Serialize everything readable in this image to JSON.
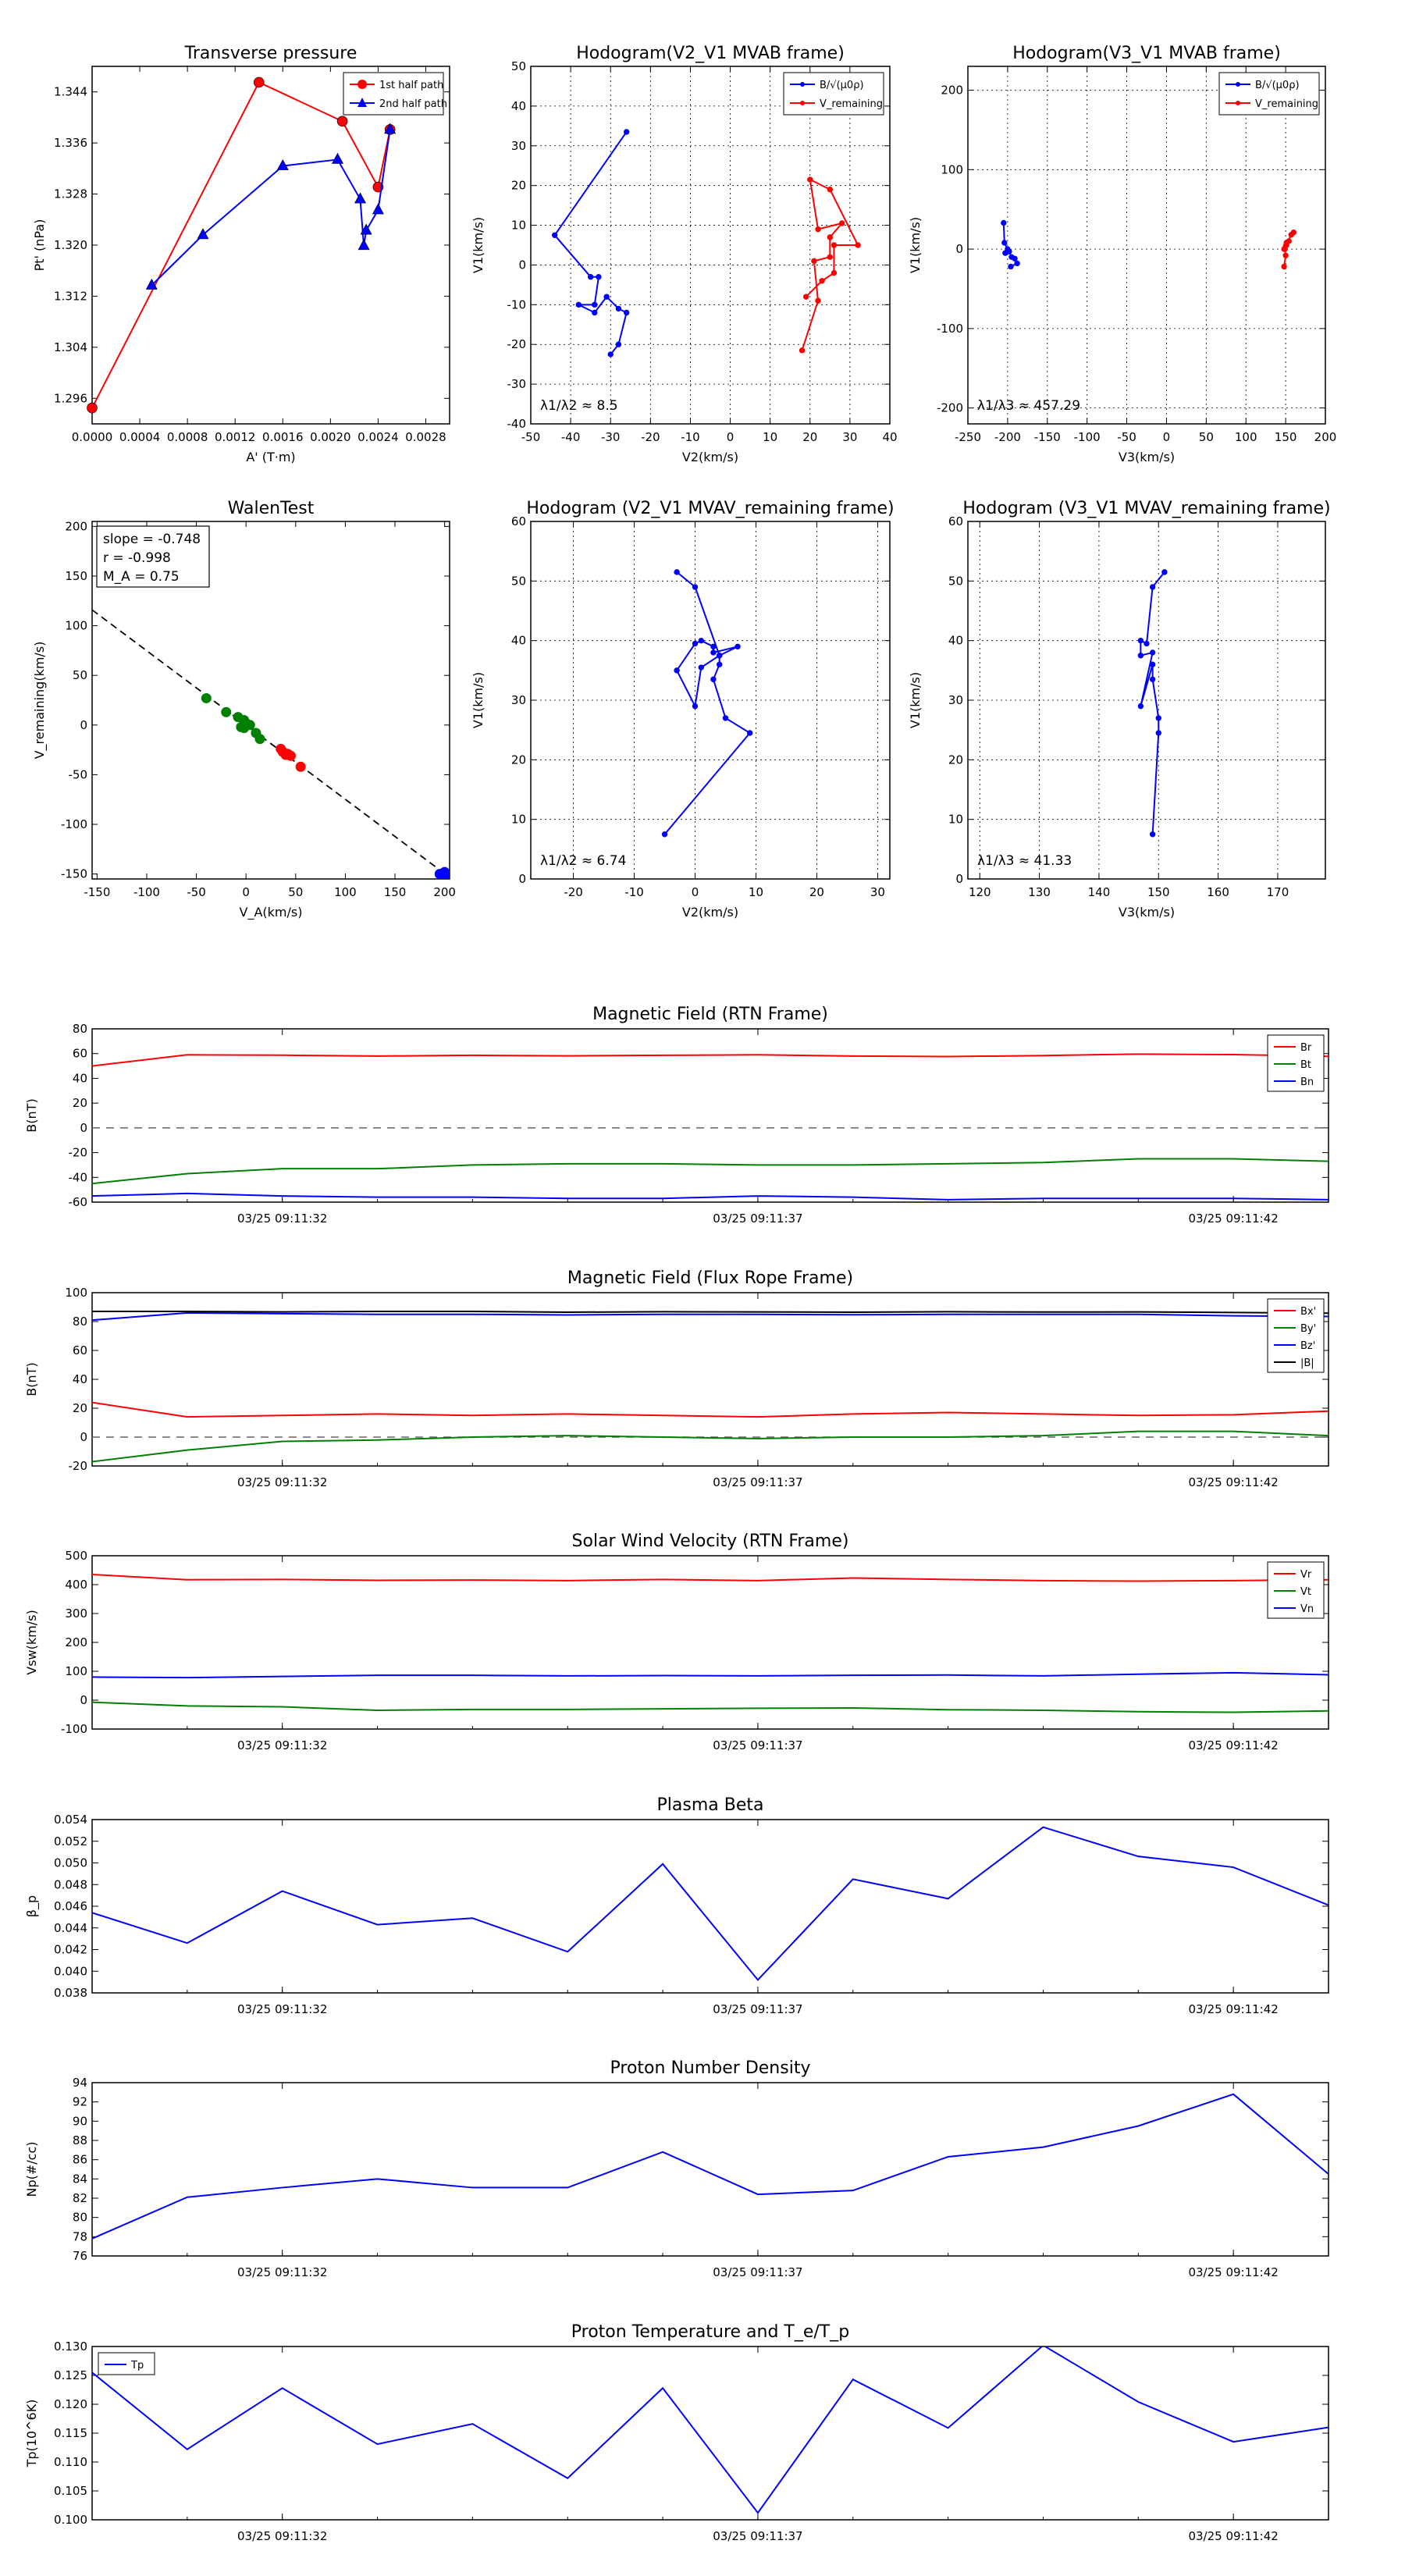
{
  "chart_data": [
    {
      "type": "scatter",
      "title": "Transverse pressure",
      "xlabel": "A' (T·m)",
      "ylabel": "Pt' (nPa)",
      "xlim": [
        0,
        0.003
      ],
      "ylim": [
        1.292,
        1.348
      ],
      "xticks": [
        0.0,
        0.0004,
        0.0008,
        0.0012,
        0.0016,
        0.002,
        0.0024,
        0.0028
      ],
      "xtick_labels": [
        "0.0000",
        "0.0004",
        "0.0008",
        "0.0012",
        "0.0016",
        "0.0020",
        "0.0024",
        "0.0028"
      ],
      "yticks": [
        1.296,
        1.304,
        1.312,
        1.32,
        1.328,
        1.336,
        1.344
      ],
      "ytick_labels": [
        "1.296",
        "1.304",
        "1.312",
        "1.320",
        "1.328",
        "1.336",
        "1.344"
      ],
      "legend": "top-right",
      "series": [
        {
          "name": "1st half path",
          "color": "#ff0000",
          "marker": "circle",
          "x": [
            0.0,
            0.0014,
            0.0021,
            0.0024,
            0.0025
          ],
          "y": [
            1.2945,
            1.3455,
            1.3394,
            1.3291,
            1.3381
          ]
        },
        {
          "name": "2nd half path",
          "color": "#0000ff",
          "marker": "triangle",
          "x": [
            0.0005,
            0.00093,
            0.0016,
            0.00206,
            0.00225,
            0.00228,
            0.0023,
            0.0024,
            0.0025
          ],
          "y": [
            1.3137,
            1.3216,
            1.3324,
            1.3334,
            1.3272,
            1.3199,
            1.3223,
            1.3255,
            1.3381
          ]
        }
      ]
    },
    {
      "type": "line",
      "title": "Hodogram(V2_V1 MVAB frame)",
      "xlabel": "V2(km/s)",
      "ylabel": "V1(km/s)",
      "xlim": [
        -50,
        40
      ],
      "ylim": [
        -40,
        50
      ],
      "xticks": [
        -50,
        -40,
        -30,
        -20,
        -10,
        0,
        10,
        20,
        30,
        40
      ],
      "yticks": [
        -40,
        -30,
        -20,
        -10,
        0,
        10,
        20,
        30,
        40,
        50
      ],
      "legend": "top-right",
      "annotation": "λ1/λ2 ≈ 8.5",
      "series": [
        {
          "name": "B/√(μ0ρ)",
          "color": "#0000ff",
          "x": [
            -26,
            -44,
            -35,
            -33,
            -34,
            -38,
            -34,
            -31,
            -28,
            -26,
            -28,
            -30
          ],
          "y": [
            33.5,
            7.5,
            -3,
            -3,
            -10,
            -10,
            -12,
            -8,
            -11,
            -12,
            -20,
            -22.5
          ]
        },
        {
          "name": "V_remaining",
          "color": "#ff0000",
          "x": [
            18,
            22,
            21,
            25,
            25,
            28,
            22,
            20,
            25,
            32,
            26,
            26,
            23,
            19
          ],
          "y": [
            -21.5,
            -9,
            1,
            2,
            7,
            10.5,
            9,
            21.5,
            19,
            5,
            5,
            -2,
            -4,
            -8
          ]
        }
      ]
    },
    {
      "type": "line",
      "title": "Hodogram(V3_V1 MVAB frame)",
      "xlabel": "V3(km/s)",
      "ylabel": "V1(km/s)",
      "xlim": [
        -250,
        200
      ],
      "ylim": [
        -220,
        230
      ],
      "xticks": [
        -250,
        -200,
        -150,
        -100,
        -50,
        0,
        50,
        100,
        150,
        200
      ],
      "yticks": [
        -200,
        -100,
        0,
        100,
        200
      ],
      "legend": "top-right",
      "annotation": "λ1/λ3 ≈ 457.29",
      "series": [
        {
          "name": "B/√(μ0ρ)",
          "color": "#0000ff",
          "x": [
            -205,
            -204,
            -200,
            -203,
            -198,
            -195,
            -191,
            -188,
            -196
          ],
          "y": [
            33,
            8,
            0,
            -5,
            -3,
            -10,
            -12,
            -18,
            -22
          ]
        },
        {
          "name": "V_remaining",
          "color": "#ff0000",
          "x": [
            148,
            150,
            149,
            151,
            151,
            154,
            150,
            148,
            157,
            160
          ],
          "y": [
            -22,
            -8,
            0,
            5,
            8,
            10,
            4,
            0,
            18,
            21
          ]
        }
      ]
    },
    {
      "type": "scatter",
      "title": "WalenTest",
      "xlabel": "V_A(km/s)",
      "ylabel": "V_remaining(km/s)",
      "xlim": [
        -155,
        205
      ],
      "ylim": [
        -155,
        205
      ],
      "xticks": [
        -150,
        -100,
        -50,
        0,
        50,
        100,
        150,
        200
      ],
      "yticks": [
        -150,
        -100,
        -50,
        0,
        50,
        100,
        150,
        200
      ],
      "stats": [
        "slope = -0.748",
        "r = -0.998",
        "M_A = 0.75"
      ],
      "fit_line": {
        "slope": -0.748,
        "intercept": 0
      },
      "series": [
        {
          "name": "green",
          "color": "#008000",
          "x": [
            -40,
            -20,
            -8,
            -5,
            -2,
            0,
            2,
            4,
            10,
            14,
            -2
          ],
          "y": [
            27,
            13,
            8,
            -2,
            5,
            2,
            0,
            0,
            -8,
            -14,
            -3
          ]
        },
        {
          "name": "red",
          "color": "#ff0000",
          "x": [
            35,
            37,
            40,
            42,
            45,
            55
          ],
          "y": [
            -24,
            -27,
            -30,
            -29,
            -31,
            -42
          ]
        },
        {
          "name": "blue",
          "color": "#0000ff",
          "x": [
            195,
            200,
            202,
            198
          ],
          "y": [
            -150,
            -148,
            -152,
            -153
          ]
        }
      ]
    },
    {
      "type": "line",
      "title": "Hodogram (V2_V1 MVAV_remaining frame)",
      "xlabel": "V2(km/s)",
      "ylabel": "V1(km/s)",
      "xlim": [
        -27,
        32
      ],
      "ylim": [
        0,
        60
      ],
      "xticks": [
        -20,
        -10,
        0,
        10,
        20,
        30
      ],
      "yticks": [
        0,
        10,
        20,
        30,
        40,
        50,
        60
      ],
      "annotation": "λ1/λ2 ≈ 6.74",
      "series": [
        {
          "name": "hodogram",
          "color": "#0000ff",
          "x": [
            -5,
            9,
            5,
            3,
            4,
            4,
            1,
            0,
            -3,
            0,
            1,
            3,
            3,
            7,
            4,
            0,
            -3
          ],
          "y": [
            7.5,
            24.5,
            27,
            33.5,
            36,
            37.5,
            35.5,
            29,
            35,
            39.5,
            40,
            39,
            38,
            39,
            37.5,
            49,
            51.5
          ]
        }
      ]
    },
    {
      "type": "line",
      "title": "Hodogram (V3_V1 MVAV_remaining frame)",
      "xlabel": "V3(km/s)",
      "ylabel": "V1(km/s)",
      "xlim": [
        118,
        178
      ],
      "ylim": [
        0,
        60
      ],
      "xticks": [
        120,
        130,
        140,
        150,
        160,
        170
      ],
      "yticks": [
        0,
        10,
        20,
        30,
        40,
        50,
        60
      ],
      "annotation": "λ1/λ3 ≈ 41.33",
      "series": [
        {
          "name": "hodogram",
          "color": "#0000ff",
          "x": [
            149,
            150,
            150,
            149,
            149,
            147,
            149,
            147,
            147,
            148,
            149,
            151
          ],
          "y": [
            7.5,
            24.5,
            27,
            33.5,
            36,
            29,
            38,
            37.5,
            40,
            39.5,
            49,
            51.5
          ]
        }
      ]
    },
    {
      "type": "line",
      "title": "Magnetic Field (RTN Frame)",
      "ylabel": "B(nT)",
      "ylim": [
        -60,
        80
      ],
      "yticks": [
        -60,
        -40,
        -20,
        0,
        20,
        40,
        60,
        80
      ],
      "x": [
        0,
        1,
        2,
        3,
        4,
        5,
        6,
        7,
        8,
        9,
        10,
        11,
        12,
        13
      ],
      "xtick_pos": [
        2,
        7,
        12
      ],
      "xtick_labels": [
        "03/25 09:11:32",
        "03/25 09:11:37",
        "03/25 09:11:42"
      ],
      "zero_line": true,
      "legend": "top-right",
      "series": [
        {
          "name": "Br",
          "color": "#ff0000",
          "values": [
            50,
            59,
            58.7,
            58,
            58.6,
            58.2,
            58.6,
            59,
            58,
            57.6,
            58.4,
            59.6,
            59.2,
            57.8
          ]
        },
        {
          "name": "Bt",
          "color": "#008000",
          "values": [
            -45,
            -37,
            -33,
            -33,
            -30,
            -29,
            -29,
            -30,
            -30,
            -29,
            -28,
            -25,
            -25,
            -27
          ]
        },
        {
          "name": "Bn",
          "color": "#0000ff",
          "values": [
            -55,
            -53,
            -55,
            -56,
            -56,
            -57,
            -57,
            -55,
            -56,
            -58,
            -57,
            -57,
            -57,
            -58
          ]
        }
      ]
    },
    {
      "type": "line",
      "title": "Magnetic Field (Flux Rope Frame)",
      "ylabel": "B(nT)",
      "ylim": [
        -20,
        100
      ],
      "yticks": [
        -20,
        0,
        20,
        40,
        60,
        80,
        100
      ],
      "x": [
        0,
        1,
        2,
        3,
        4,
        5,
        6,
        7,
        8,
        9,
        10,
        11,
        12,
        13
      ],
      "xtick_pos": [
        2,
        7,
        12
      ],
      "xtick_labels": [
        "03/25 09:11:32",
        "03/25 09:11:37",
        "03/25 09:11:42"
      ],
      "zero_line": true,
      "legend": "top-right",
      "series": [
        {
          "name": "Bx'",
          "color": "#ff0000",
          "values": [
            24,
            14,
            15,
            16,
            15,
            16,
            15,
            14,
            16,
            17,
            16,
            15,
            15.5,
            18
          ]
        },
        {
          "name": "By'",
          "color": "#008000",
          "values": [
            -17,
            -9,
            -3,
            -2,
            0,
            1,
            0,
            -1,
            0,
            0,
            1,
            4,
            4,
            1
          ]
        },
        {
          "name": "Bz'",
          "color": "#0000ff",
          "values": [
            81,
            86,
            85.5,
            85,
            85,
            84.6,
            85,
            85,
            84.7,
            85,
            85,
            85,
            84,
            83.5
          ]
        },
        {
          "name": "|B|",
          "color": "#000000",
          "values": [
            87,
            87,
            86.7,
            87,
            87,
            86.5,
            86.8,
            86.7,
            86.5,
            86.8,
            86.6,
            86.7,
            86.3,
            85.8
          ]
        }
      ]
    },
    {
      "type": "line",
      "title": "Solar Wind Velocity (RTN Frame)",
      "ylabel": "Vsw(km/s)",
      "ylim": [
        -100,
        500
      ],
      "yticks": [
        -100,
        0,
        100,
        200,
        300,
        400,
        500
      ],
      "x": [
        0,
        1,
        2,
        3,
        4,
        5,
        6,
        7,
        8,
        9,
        10,
        11,
        12,
        13
      ],
      "xtick_pos": [
        2,
        7,
        12
      ],
      "xtick_labels": [
        "03/25 09:11:32",
        "03/25 09:11:37",
        "03/25 09:11:42"
      ],
      "zero_line": false,
      "legend": "top-right",
      "series": [
        {
          "name": "Vr",
          "color": "#ff0000",
          "values": [
            435,
            417,
            418,
            415,
            416,
            414,
            418,
            414,
            423,
            418,
            414,
            412,
            414,
            417
          ]
        },
        {
          "name": "Vt",
          "color": "#008000",
          "values": [
            -7,
            -20,
            -23,
            -35,
            -32,
            -32,
            -30,
            -28,
            -27,
            -33,
            -35,
            -40,
            -42,
            -37
          ]
        },
        {
          "name": "Vn",
          "color": "#0000ff",
          "values": [
            80,
            78,
            82,
            86,
            86,
            84,
            85,
            84,
            86,
            87,
            84,
            90,
            95,
            88
          ]
        }
      ]
    },
    {
      "type": "line",
      "title": "Plasma Beta",
      "ylabel": "β_p",
      "ylim": [
        0.038,
        0.054
      ],
      "yticks": [
        0.038,
        0.04,
        0.042,
        0.044,
        0.046,
        0.048,
        0.05,
        0.052,
        0.054
      ],
      "ytick_labels": [
        "0.038",
        "0.040",
        "0.042",
        "0.044",
        "0.046",
        "0.048",
        "0.050",
        "0.052",
        "0.054"
      ],
      "x": [
        0,
        1,
        2,
        3,
        4,
        5,
        6,
        7,
        8,
        9,
        10,
        11,
        12,
        13
      ],
      "xtick_pos": [
        2,
        7,
        12
      ],
      "xtick_labels": [
        "03/25 09:11:32",
        "03/25 09:11:37",
        "03/25 09:11:42"
      ],
      "series": [
        {
          "name": "beta",
          "color": "#0000ff",
          "values": [
            0.0454,
            0.0426,
            0.0474,
            0.0443,
            0.0449,
            0.0418,
            0.0499,
            0.0392,
            0.0485,
            0.0467,
            0.0533,
            0.0506,
            0.0496,
            0.0461
          ]
        }
      ]
    },
    {
      "type": "line",
      "title": "Proton Number Density",
      "ylabel": "Np(#/cc)",
      "ylim": [
        76,
        94
      ],
      "yticks": [
        76,
        78,
        80,
        82,
        84,
        86,
        88,
        90,
        92,
        94
      ],
      "x": [
        0,
        1,
        2,
        3,
        4,
        5,
        6,
        7,
        8,
        9,
        10,
        11,
        12,
        13
      ],
      "xtick_pos": [
        2,
        7,
        12
      ],
      "xtick_labels": [
        "03/25 09:11:32",
        "03/25 09:11:37",
        "03/25 09:11:42"
      ],
      "series": [
        {
          "name": "Np",
          "color": "#0000ff",
          "values": [
            77.8,
            82.1,
            83.1,
            84.0,
            83.1,
            83.1,
            86.8,
            82.4,
            82.8,
            86.3,
            87.3,
            89.5,
            92.8,
            84.5
          ]
        }
      ]
    },
    {
      "type": "line",
      "title": "Proton Temperature and T_e/T_p",
      "ylabel": "Tp(10^6K)",
      "ylim": [
        0.1,
        0.13
      ],
      "yticks": [
        0.1,
        0.105,
        0.11,
        0.115,
        0.12,
        0.125,
        0.13
      ],
      "ytick_labels": [
        "0.100",
        "0.105",
        "0.110",
        "0.115",
        "0.120",
        "0.125",
        "0.130"
      ],
      "x": [
        0,
        1,
        2,
        3,
        4,
        5,
        6,
        7,
        8,
        9,
        10,
        11,
        12,
        13
      ],
      "xtick_pos": [
        2,
        7,
        12
      ],
      "xtick_labels": [
        "03/25 09:11:32",
        "03/25 09:11:37",
        "03/25 09:11:42"
      ],
      "legend": "top-left",
      "series": [
        {
          "name": "Tp",
          "color": "#0000ff",
          "values": [
            0.1255,
            0.1122,
            0.1228,
            0.1131,
            0.1166,
            0.1072,
            0.1228,
            0.1012,
            0.1243,
            0.1159,
            0.1302,
            0.1204,
            0.1135,
            0.116
          ]
        }
      ]
    }
  ]
}
